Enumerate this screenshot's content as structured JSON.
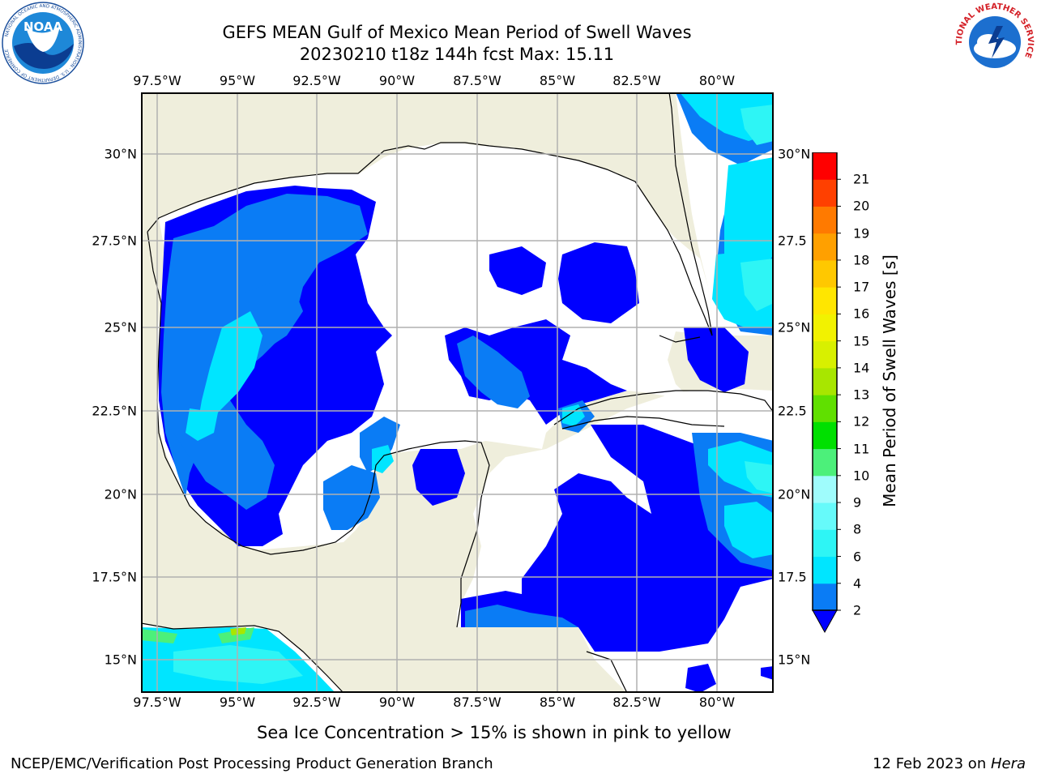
{
  "title": {
    "line1": "GEFS MEAN Gulf of Mexico Mean Period of Swell Waves",
    "line2": "20230210 t18z 144h fcst   Max: 15.11"
  },
  "map": {
    "lon_ticks": [
      "97.5°W",
      "95°W",
      "92.5°W",
      "90°W",
      "87.5°W",
      "85°W",
      "82.5°W",
      "80°W"
    ],
    "lat_ticks_left": [
      "30°N",
      "27.5°N",
      "25°N",
      "22.5°N",
      "20°N",
      "17.5°N",
      "15°N"
    ],
    "lat_ticks_right": [
      "30°N",
      "27.5",
      "25°N",
      "22.5",
      "20°N",
      "17.5",
      "15°N"
    ],
    "extent": {
      "lon_min": -98.0,
      "lon_max": -78.3,
      "lat_min": 14.0,
      "lat_max": 31.8
    },
    "colors": {
      "land": "#efeedc",
      "water_none": "#ffffff",
      "grid": "#b0b0b0",
      "coast": "#000000"
    }
  },
  "colorbar": {
    "label": "Mean Period of Swell Waves [s]",
    "ticks": [
      "2",
      "4",
      "6",
      "8",
      "9",
      "10",
      "11",
      "12",
      "13",
      "14",
      "15",
      "16",
      "17",
      "18",
      "19",
      "20",
      "21"
    ],
    "colors": [
      "#0a7cf5",
      "#00e5ff",
      "#2ef5f5",
      "#66fafa",
      "#9ffcfc",
      "#4cf07a",
      "#00e000",
      "#60e000",
      "#a8e600",
      "#d8f000",
      "#f2f200",
      "#ffe600",
      "#ffc800",
      "#ffa000",
      "#ff7a00",
      "#ff4000",
      "#ff0000"
    ],
    "underflow_color": "#0000ff"
  },
  "field_colors": {
    "c1": "#0000ff",
    "c2": "#0a7cf5",
    "c3": "#00e5ff",
    "c4": "#2ef5f5",
    "c5": "#66fafa",
    "c6": "#4cf07a",
    "c7": "#a8e600"
  },
  "subtitle": "Sea Ice Concentration > 15% is shown in pink to yellow",
  "footer": {
    "left": "NCEP/EMC/Verification Post Processing Product Generation Branch",
    "right_prefix": "12 Feb 2023 on ",
    "right_host": "Hera"
  },
  "logos": {
    "noaa_text": "NOAA",
    "noaa_ring": "NATIONAL OCEANIC AND ATMOSPHERIC ADMINISTRATION · U.S. DEPARTMENT OF COMMERCE",
    "nws_ring": "NATIONAL WEATHER SERVICE"
  }
}
